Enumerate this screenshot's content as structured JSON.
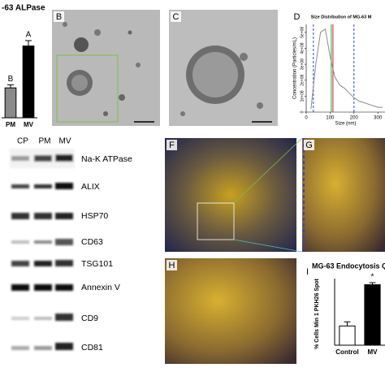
{
  "chart_data": [
    {
      "type": "bar",
      "title": "-63 ALPase",
      "categories": [
        "PM",
        "MV"
      ],
      "values": [
        1,
        2.4
      ],
      "errors": [
        0.1,
        0.18
      ],
      "colors": [
        "#8a8a8a",
        "#000000"
      ],
      "annotations": [
        "B",
        "A"
      ]
    },
    {
      "type": "line",
      "title": "Size Distribution of MG-63 M",
      "x_label": "Size (nm)",
      "y_label": "Concentration (Particles/mL)",
      "x": [
        20,
        40,
        60,
        80,
        100,
        120,
        140,
        160,
        180,
        200,
        220,
        240,
        260,
        280,
        300,
        320
      ],
      "values": [
        20000000,
        300000000,
        500000000,
        520000000,
        350000000,
        220000000,
        170000000,
        150000000,
        120000000,
        90000000,
        70000000,
        60000000,
        50000000,
        40000000,
        30000000,
        30000000
      ],
      "color": "#8a8a8a",
      "xlim": [
        0,
        330
      ],
      "ylim": [
        0,
        550000000
      ],
      "xticks": [
        0,
        100,
        200,
        300
      ],
      "yticks": [
        0,
        {
          "value": 100000000,
          "label": "1e+08"
        },
        {
          "value": 200000000,
          "label": "2e+08"
        },
        {
          "value": 300000000,
          "label": "3e+08"
        },
        {
          "value": 400000000,
          "label": "4e+08"
        },
        {
          "value": 500000000,
          "label": "5e+08"
        }
      ],
      "vlines": [
        {
          "value": 30,
          "color": "#3344cc"
        },
        {
          "value": 105,
          "color": "#22aa33"
        },
        {
          "value": 112,
          "color": "#dd2222"
        },
        {
          "value": 200,
          "color": "#3344cc"
        }
      ]
    },
    {
      "type": "bar",
      "title": "MG-63 Endocytosis Qu",
      "y_label": "% Cells Min 1 PKH26 Spot",
      "categories": [
        "Control",
        "MV"
      ],
      "values": [
        14,
        44
      ],
      "errors": [
        3,
        1.5
      ],
      "colors": [
        "#ffffff",
        "#000000"
      ],
      "annotations": [
        null,
        "*"
      ]
    }
  ],
  "panel_labels": [
    "B",
    "C",
    "D",
    "F",
    "G",
    "H",
    "I"
  ],
  "blot": {
    "lanes": [
      "CP",
      "PM",
      "MV"
    ],
    "proteins": [
      "Na-K ATPase",
      "ALIX",
      "HSP70",
      "CD63",
      "TSG101",
      "Annexin V",
      "CD9",
      "CD81"
    ]
  }
}
